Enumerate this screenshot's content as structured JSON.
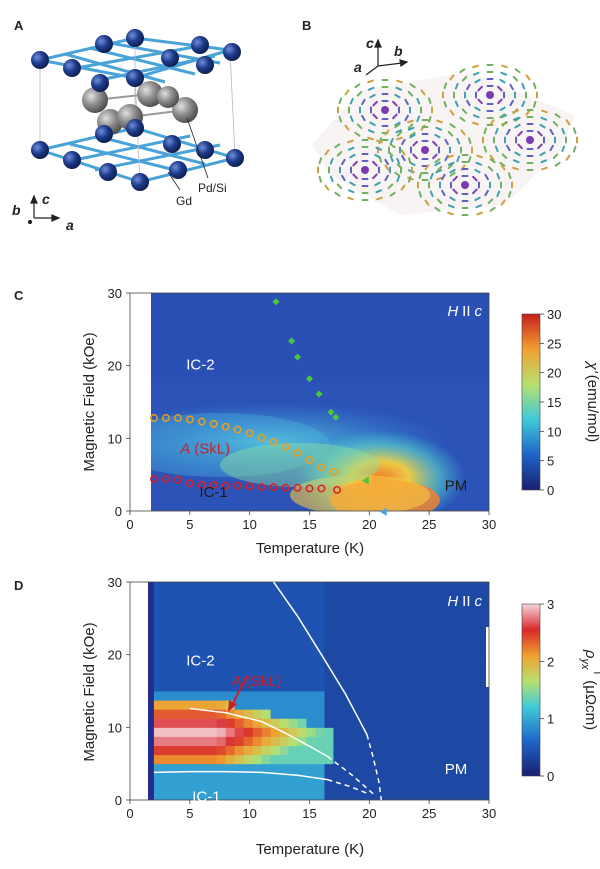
{
  "panels": {
    "A": {
      "letter": "A",
      "atom_labels": {
        "gd": "Gd",
        "pdsi": "Pd/Si"
      },
      "axes": {
        "b": "b",
        "c": "c",
        "a": "a"
      },
      "colors": {
        "gd": "#1e3c8c",
        "pdsi": "#8c8c8c",
        "bonds": "#4aa3d8"
      }
    },
    "B": {
      "letter": "B",
      "axes": {
        "c": "c",
        "b": "b",
        "a": "a"
      }
    }
  },
  "chart_data": [
    {
      "panel": "C",
      "type": "heatmap",
      "field_label": "H",
      "field_sep": "II",
      "field_axis": "c",
      "xlabel": "Temperature (K)",
      "ylabel": "Magnetic Field (kOe)",
      "xlim": [
        0,
        30
      ],
      "ylim": [
        0,
        30
      ],
      "xticks": [
        "0",
        "5",
        "10",
        "15",
        "20",
        "25",
        "30"
      ],
      "yticks": [
        "0",
        "10",
        "20",
        "30"
      ],
      "colorbar": {
        "symbol": "χ'",
        "unit": "(emu/mol)",
        "range": [
          0,
          30
        ],
        "ticks": [
          "0",
          "5",
          "10",
          "15",
          "20",
          "25",
          "30"
        ]
      },
      "regions": [
        {
          "label": "IC-2",
          "T": 4.7,
          "H": 19.5
        },
        {
          "label": "A",
          "suffix": "(SkL)",
          "T": 4.2,
          "H": 7.9
        },
        {
          "label": "IC-1",
          "T": 5.8,
          "H": 1.9
        },
        {
          "label": "PM",
          "T": 26.3,
          "H": 2.8
        }
      ],
      "series": [
        {
          "name": "A phase upper boundary",
          "marker": "circle",
          "color": "#e8a020",
          "points": [
            [
              2,
              12.8
            ],
            [
              3,
              12.8
            ],
            [
              4,
              12.8
            ],
            [
              5,
              12.6
            ],
            [
              6,
              12.3
            ],
            [
              7,
              12.0
            ],
            [
              8,
              11.6
            ],
            [
              9,
              11.2
            ],
            [
              10,
              10.7
            ],
            [
              11,
              10.1
            ],
            [
              12,
              9.5
            ],
            [
              13,
              8.8
            ],
            [
              14,
              8.0
            ],
            [
              15,
              7.0
            ],
            [
              16,
              6.0
            ],
            [
              17,
              5.4
            ]
          ]
        },
        {
          "name": "A phase lower boundary",
          "marker": "circle",
          "color": "#d8202a",
          "points": [
            [
              2,
              4.4
            ],
            [
              3,
              4.4
            ],
            [
              4,
              4.3
            ],
            [
              5,
              3.8
            ],
            [
              6,
              3.6
            ],
            [
              7,
              3.6
            ],
            [
              8,
              3.5
            ],
            [
              9,
              3.5
            ],
            [
              10,
              3.4
            ],
            [
              11,
              3.3
            ],
            [
              12,
              3.3
            ],
            [
              13,
              3.2
            ],
            [
              14,
              3.2
            ],
            [
              15,
              3.1
            ],
            [
              16,
              3.1
            ],
            [
              17.3,
              2.9
            ]
          ]
        },
        {
          "name": "IC-2 boundary",
          "marker": "diamond",
          "color": "#49c83c",
          "points": [
            [
              12.2,
              28.8
            ],
            [
              13.5,
              23.4
            ],
            [
              14.0,
              21.2
            ],
            [
              15.0,
              18.2
            ],
            [
              15.8,
              16.1
            ],
            [
              16.8,
              13.6
            ],
            [
              17.2,
              12.9
            ]
          ]
        },
        {
          "name": "IC-1 boundary",
          "marker": "triangle-left",
          "color": "#49c83c",
          "points": [
            [
              19.7,
              4.2
            ]
          ]
        },
        {
          "name": "transition",
          "marker": "triangle-left",
          "color": "#4aa0e0",
          "points": [
            [
              21.2,
              -0.1
            ]
          ]
        }
      ]
    },
    {
      "panel": "D",
      "type": "heatmap",
      "field_label": "H",
      "field_sep": "II",
      "field_axis": "c",
      "xlabel": "Temperature (K)",
      "ylabel": "Magnetic Field (kOe)",
      "xlim": [
        0,
        30
      ],
      "ylim": [
        0,
        30
      ],
      "xticks": [
        "0",
        "5",
        "10",
        "15",
        "20",
        "25",
        "30"
      ],
      "yticks": [
        "0",
        "10",
        "20",
        "30"
      ],
      "colorbar": {
        "symbol": "ρ",
        "sub": "yx",
        "sup": "T",
        "unit": "(μΩcm)",
        "range": [
          0,
          3
        ],
        "ticks": [
          "0",
          "1",
          "2",
          "3"
        ]
      },
      "regions": [
        {
          "label": "IC-2",
          "T": 4.7,
          "H": 18.5
        },
        {
          "label": "A",
          "suffix": "(SkL)",
          "T": 8.5,
          "H": 15.7
        },
        {
          "label": "IC-1",
          "T": 5.2,
          "H": -0.2
        },
        {
          "label": "PM",
          "T": 26.3,
          "H": 3.6
        }
      ],
      "lines": [
        {
          "name": "IC-2 boundary",
          "style": "solid",
          "points": [
            [
              12.0,
              30
            ],
            [
              14.0,
              25.3
            ],
            [
              16.0,
              20.0
            ],
            [
              18.0,
              14.6
            ],
            [
              19.0,
              11.5
            ],
            [
              19.8,
              9.0
            ]
          ]
        },
        {
          "name": "IC-2 boundary (extrapolated)",
          "style": "dashed",
          "points": [
            [
              19.8,
              9.0
            ],
            [
              20.3,
              6.0
            ],
            [
              20.8,
              2.5
            ],
            [
              21.0,
              0
            ]
          ]
        },
        {
          "name": "A phase upper boundary",
          "style": "solid",
          "points": [
            [
              5,
              12.6
            ],
            [
              8,
              12.0
            ],
            [
              11,
              10.8
            ],
            [
              13,
              9.2
            ],
            [
              15,
              7.4
            ],
            [
              16.5,
              6.0
            ]
          ]
        },
        {
          "name": "A phase upper boundary (extrapolated)",
          "style": "dashed",
          "points": [
            [
              16.5,
              6.0
            ],
            [
              18.5,
              3.5
            ],
            [
              20.5,
              0.6
            ]
          ]
        },
        {
          "name": "A phase lower boundary",
          "style": "solid",
          "points": [
            [
              2,
              3.8
            ],
            [
              5,
              3.9
            ],
            [
              8,
              3.9
            ],
            [
              11,
              3.8
            ],
            [
              14,
              3.4
            ],
            [
              16.5,
              2.8
            ]
          ]
        },
        {
          "name": "A phase lower boundary (extrapolated)",
          "style": "dashed",
          "points": [
            [
              16.5,
              2.8
            ],
            [
              18.5,
              1.8
            ],
            [
              20.0,
              0.8
            ]
          ]
        }
      ]
    }
  ]
}
